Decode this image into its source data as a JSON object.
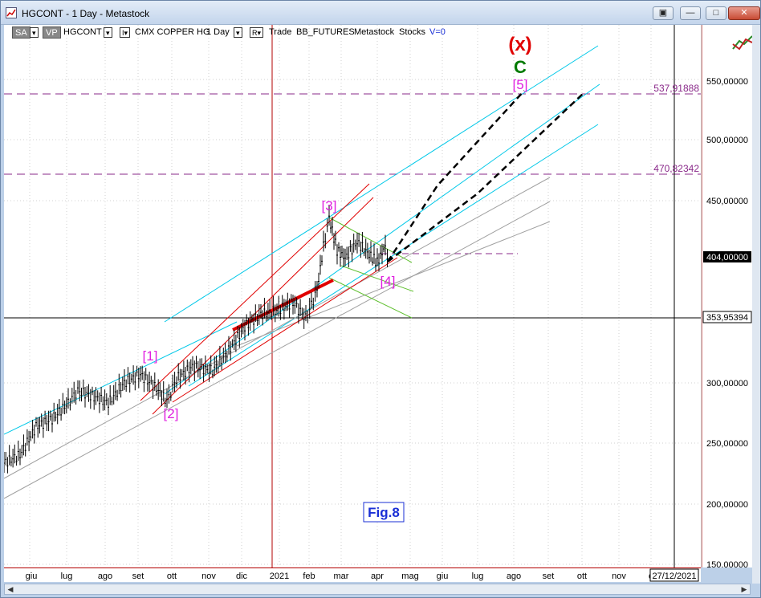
{
  "window": {
    "title": "HGCONT - 1 Day - Metastock",
    "buttons": {
      "restore_label": "▣",
      "minimize_label": "—",
      "maximize_label": "□",
      "close_label": "✕"
    }
  },
  "toolbar": {
    "sa_label": "SA",
    "sa_arrow": "▾",
    "vp_label": "VP",
    "symbol": "HGCONT",
    "symbol_arrow": "▾",
    "i_label": "I▾",
    "security_name": "CMX COPPER HG",
    "period": "1 Day",
    "period_arrow": "▾",
    "r_label": "R▾",
    "trade_label": "Trade",
    "source": "BB_FUTURES",
    "app": "Metastock",
    "market": "Stocks",
    "volume": "V=0"
  },
  "annotations": {
    "x_label": "(x)",
    "c_label": "C",
    "w5": "[5]",
    "w4": "[4]",
    "w3": "[3]",
    "w2": "[2]",
    "w1": "[1]",
    "fig_label": "Fig.8",
    "level_high": "537,91888",
    "level_mid": "470,82342"
  },
  "price_axis": {
    "ticks": [
      "550,00000",
      "500,00000",
      "450,00000",
      "300,00000",
      "250,00000",
      "200,00000",
      "150,00000"
    ],
    "last_price": "404,00000",
    "crosshair_price": "353,95394"
  },
  "time_axis": {
    "labels": [
      "giu",
      "lug",
      "ago",
      "set",
      "ott",
      "nov",
      "dic",
      "2021",
      "feb",
      "mar",
      "apr",
      "mag",
      "giu",
      "lug",
      "ago",
      "set",
      "ott",
      "nov",
      "d"
    ],
    "crosshair_date": "27/12/2021"
  },
  "colors": {
    "magenta": "#e020e0",
    "red": "#e00000",
    "green": "#007a00",
    "cyan": "#00c8e8",
    "dark_red": "#b30000",
    "purple_dash": "#8a2a8a"
  }
}
